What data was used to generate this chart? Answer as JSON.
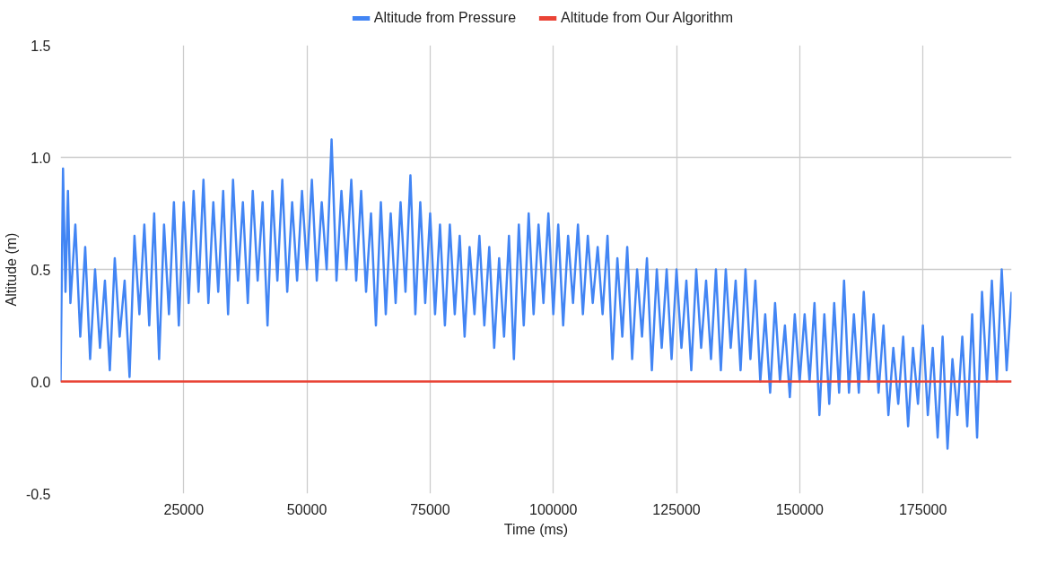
{
  "chart_data": {
    "type": "line",
    "xlabel": "Time (ms)",
    "ylabel": "Altitude (m)",
    "legend": "top",
    "grid": true,
    "marker": "none",
    "line_style": "solid",
    "xlim": [
      0,
      193000
    ],
    "xticks": [
      25000,
      50000,
      75000,
      100000,
      125000,
      150000,
      175000
    ],
    "ylim": [
      -0.5,
      1.5
    ],
    "yticks": [
      {
        "value": -0.5,
        "label": "-0.5"
      },
      {
        "value": 0,
        "label": "0.0"
      },
      {
        "value": 0.5,
        "label": "0.5"
      },
      {
        "value": 1,
        "label": "1.0"
      },
      {
        "value": 1.5,
        "label": "1.5"
      }
    ],
    "series": [
      {
        "name": "Altitude from Pressure",
        "color": "#4285f4",
        "x": [
          0,
          500,
          1000,
          1500,
          2000,
          3000,
          4000,
          5000,
          6000,
          7000,
          8000,
          9000,
          10000,
          11000,
          12000,
          13000,
          14000,
          15000,
          16000,
          17000,
          18000,
          19000,
          20000,
          21000,
          22000,
          23000,
          24000,
          25000,
          26000,
          27000,
          28000,
          29000,
          30000,
          31000,
          32000,
          33000,
          34000,
          35000,
          36000,
          37000,
          38000,
          39000,
          40000,
          41000,
          42000,
          43000,
          44000,
          45000,
          46000,
          47000,
          48000,
          49000,
          50000,
          51000,
          52000,
          53000,
          54000,
          55000,
          56000,
          57000,
          58000,
          59000,
          60000,
          61000,
          62000,
          63000,
          64000,
          65000,
          66000,
          67000,
          68000,
          69000,
          70000,
          71000,
          72000,
          73000,
          74000,
          75000,
          76000,
          77000,
          78000,
          79000,
          80000,
          81000,
          82000,
          83000,
          84000,
          85000,
          86000,
          87000,
          88000,
          89000,
          90000,
          91000,
          92000,
          93000,
          94000,
          95000,
          96000,
          97000,
          98000,
          99000,
          100000,
          101000,
          102000,
          103000,
          104000,
          105000,
          106000,
          107000,
          108000,
          109000,
          110000,
          111000,
          112000,
          113000,
          114000,
          115000,
          116000,
          117000,
          118000,
          119000,
          120000,
          121000,
          122000,
          123000,
          124000,
          125000,
          126000,
          127000,
          128000,
          129000,
          130000,
          131000,
          132000,
          133000,
          134000,
          135000,
          136000,
          137000,
          138000,
          139000,
          140000,
          141000,
          142000,
          143000,
          144000,
          145000,
          146000,
          147000,
          148000,
          149000,
          150000,
          151000,
          152000,
          153000,
          154000,
          155000,
          156000,
          157000,
          158000,
          159000,
          160000,
          161000,
          162000,
          163000,
          164000,
          165000,
          166000,
          167000,
          168000,
          169000,
          170000,
          171000,
          172000,
          173000,
          174000,
          175000,
          176000,
          177000,
          178000,
          179000,
          180000,
          181000,
          182000,
          183000,
          184000,
          185000,
          186000,
          187000,
          188000,
          189000,
          190000,
          191000,
          192000,
          193000
        ],
        "values": [
          0,
          0.95,
          0.4,
          0.85,
          0.35,
          0.7,
          0.2,
          0.6,
          0.1,
          0.5,
          0.15,
          0.45,
          0.05,
          0.55,
          0.2,
          0.45,
          0.02,
          0.65,
          0.3,
          0.7,
          0.25,
          0.75,
          0.1,
          0.7,
          0.3,
          0.8,
          0.25,
          0.8,
          0.35,
          0.85,
          0.4,
          0.9,
          0.35,
          0.8,
          0.4,
          0.85,
          0.3,
          0.9,
          0.45,
          0.8,
          0.35,
          0.85,
          0.45,
          0.8,
          0.25,
          0.85,
          0.45,
          0.9,
          0.4,
          0.8,
          0.45,
          0.85,
          0.5,
          0.9,
          0.45,
          0.8,
          0.5,
          1.08,
          0.45,
          0.85,
          0.5,
          0.9,
          0.45,
          0.85,
          0.4,
          0.75,
          0.25,
          0.8,
          0.3,
          0.75,
          0.35,
          0.8,
          0.4,
          0.92,
          0.3,
          0.8,
          0.35,
          0.75,
          0.3,
          0.7,
          0.25,
          0.7,
          0.3,
          0.65,
          0.2,
          0.6,
          0.3,
          0.65,
          0.25,
          0.6,
          0.15,
          0.55,
          0.2,
          0.65,
          0.1,
          0.7,
          0.25,
          0.75,
          0.3,
          0.7,
          0.35,
          0.75,
          0.3,
          0.7,
          0.25,
          0.65,
          0.35,
          0.7,
          0.3,
          0.65,
          0.35,
          0.6,
          0.3,
          0.65,
          0.1,
          0.55,
          0.2,
          0.6,
          0.1,
          0.5,
          0.2,
          0.55,
          0.05,
          0.5,
          0.15,
          0.5,
          0.1,
          0.5,
          0.15,
          0.45,
          0.05,
          0.5,
          0.15,
          0.45,
          0.1,
          0.5,
          0.05,
          0.5,
          0.15,
          0.45,
          0.05,
          0.5,
          0.1,
          0.45,
          0.0,
          0.3,
          -0.05,
          0.35,
          0.0,
          0.25,
          -0.07,
          0.3,
          0.0,
          0.3,
          0.0,
          0.35,
          -0.15,
          0.3,
          -0.1,
          0.35,
          -0.05,
          0.45,
          -0.05,
          0.3,
          -0.05,
          0.4,
          0.0,
          0.3,
          -0.05,
          0.25,
          -0.15,
          0.15,
          -0.1,
          0.2,
          -0.2,
          0.15,
          -0.1,
          0.25,
          -0.15,
          0.15,
          -0.25,
          0.2,
          -0.3,
          0.1,
          -0.15,
          0.2,
          -0.2,
          0.3,
          -0.25,
          0.4,
          0.0,
          0.45,
          0.0,
          0.5,
          0.05,
          0.4
        ]
      },
      {
        "name": "Altitude from Our Algorithm",
        "color": "#ea4335",
        "x": [
          0,
          193000
        ],
        "values": [
          0,
          0
        ]
      }
    ]
  }
}
